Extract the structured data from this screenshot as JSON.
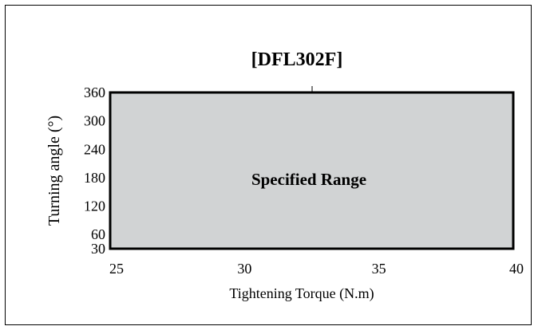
{
  "chart_data": {
    "type": "area",
    "title": "[DFL302F]",
    "xlabel": "Tightening Torque (N.m)",
    "ylabel": "Turning angle (°)",
    "xlim": [
      25,
      40
    ],
    "ylim": [
      30,
      360
    ],
    "x_ticks": [
      25,
      30,
      35,
      40
    ],
    "y_ticks": [
      30,
      60,
      120,
      180,
      240,
      300,
      360
    ],
    "region": {
      "label": "Specified Range",
      "x": [
        25,
        40
      ],
      "y": [
        30,
        360
      ],
      "fill": "#d1d3d4"
    }
  }
}
